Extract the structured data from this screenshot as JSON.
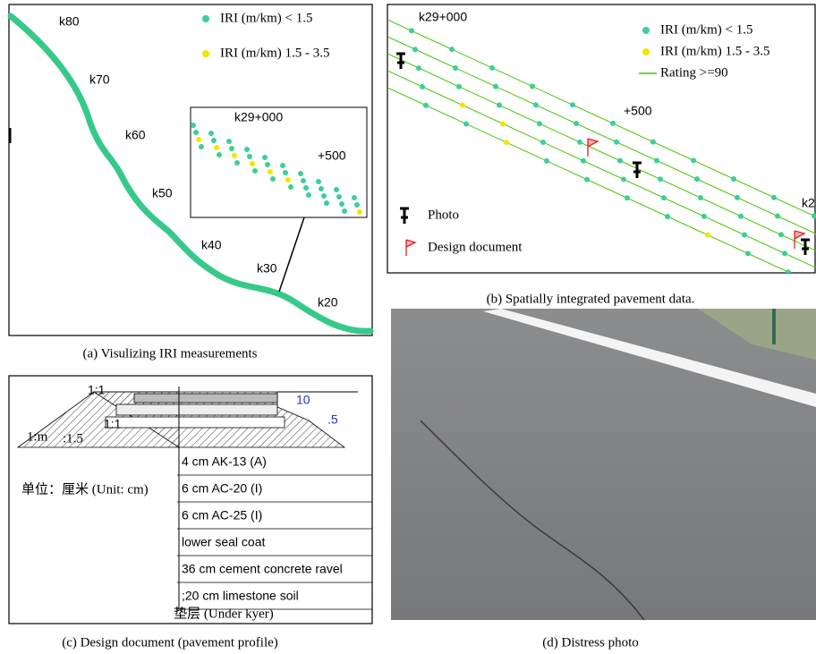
{
  "panels": {
    "a": {
      "caption": "(a) Visulizing IRI measurements",
      "legend": [
        "IRI (m/km) < 1.5",
        "IRI (m/km) 1.5 - 3.5"
      ],
      "labels": [
        "k80",
        "k70",
        "k60",
        "k50",
        "k40",
        "k30",
        "k20"
      ],
      "inset_labels": [
        "k29+000",
        "+500"
      ]
    },
    "b": {
      "caption": "(b) Spatially integrated pavement data.",
      "legend": [
        "IRI (m/km) < 1.5",
        "IRI (m/km) 1.5 - 3.5",
        "Rating >=90"
      ],
      "labels": [
        "k29+000",
        "+500",
        "k2"
      ],
      "markers": [
        "Photo",
        "Design document"
      ]
    },
    "c": {
      "caption": "(c) Design document (pavement profile)",
      "slopes": [
        "1:1",
        "1:1",
        "1:m",
        ":1.5"
      ],
      "dims": [
        "10",
        ".5"
      ],
      "unit": "单位：厘米 (Unit: cm)",
      "layers": [
        "4 cm AK-13 (A)",
        "6 cm AC-20 (I)",
        "6 cm AC-25 (I)",
        "lower seal coat",
        "36 cm cement concrete ravel",
        ";20 cm limestone soil"
      ],
      "footer": "垫层 (Under kyer)"
    },
    "d": {
      "caption": "(d) Distress photo"
    }
  }
}
